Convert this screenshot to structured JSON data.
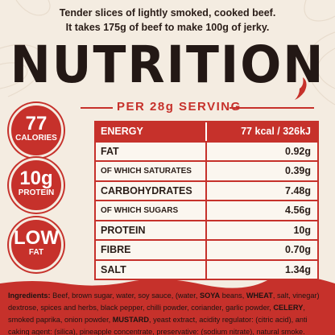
{
  "intro": [
    "Tender slices of lightly smoked, cooked beef.",
    "It takes 175g of beef to make 100g of jerky."
  ],
  "title": "NUTRITION",
  "subtitle": "PER 28g SERVING",
  "badges": [
    {
      "big": "77",
      "small": "CALORIES"
    },
    {
      "big": "10g",
      "small": "PROTEIN"
    },
    {
      "big": "LOW",
      "small": "FAT"
    }
  ],
  "table": {
    "rows": [
      [
        "ENERGY",
        "77 kcal / 326kJ"
      ],
      [
        "FAT",
        "0.92g"
      ],
      [
        "OF WHICH SATURATES",
        "0.39g"
      ],
      [
        "CARBOHYDRATES",
        "7.48g"
      ],
      [
        "OF WHICH SUGARS",
        "4.56g"
      ],
      [
        "PROTEIN",
        "10g"
      ],
      [
        "FIBRE",
        "0.70g"
      ],
      [
        "SALT",
        "1.34g"
      ]
    ]
  },
  "ingredients": [
    {
      "text": "Ingredients:",
      "bold": true
    },
    {
      "text": " Beef, brown sugar, water, soy sauce, (water, ",
      "bold": false
    },
    {
      "text": "SOYA",
      "bold": true
    },
    {
      "text": " beans, ",
      "bold": false
    },
    {
      "text": "WHEAT",
      "bold": true
    },
    {
      "text": ", salt, vinegar) dextrose, spices and herbs, black pepper, chilli powder, coriander, garlic powder, ",
      "bold": false
    },
    {
      "text": "CELERY",
      "bold": true
    },
    {
      "text": ", smoked paprika, onion powder, ",
      "bold": false
    },
    {
      "text": "MUSTARD",
      "bold": true
    },
    {
      "text": ", yeast extract, acidity regulator: (citric acid), anti caking agent: (silica), pineapple concentrate, preservative: (sodium nitrate), natural smoke.",
      "bold": false
    }
  ]
}
